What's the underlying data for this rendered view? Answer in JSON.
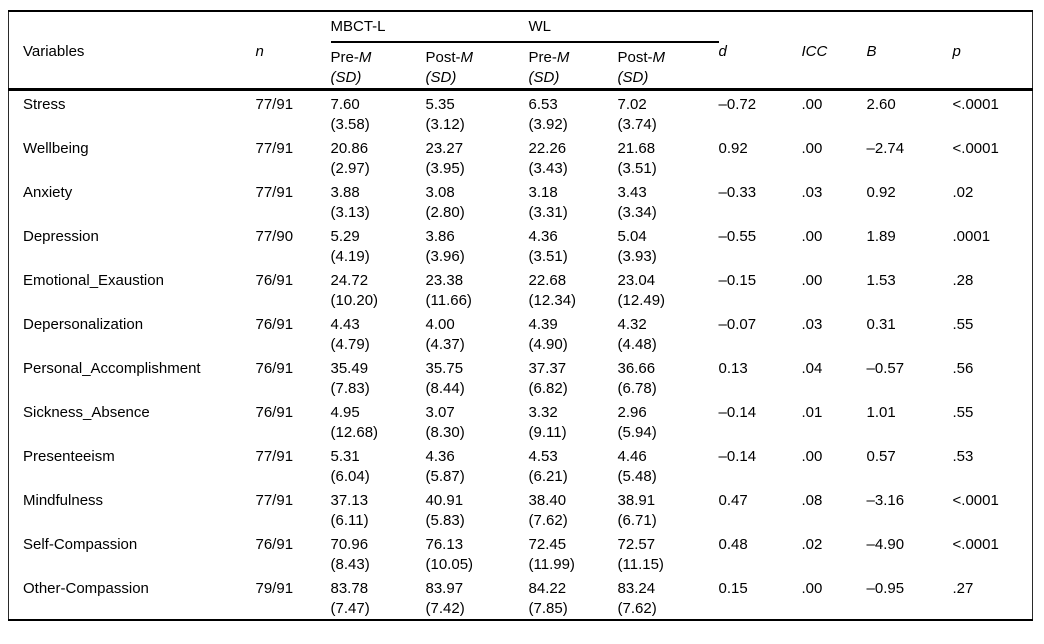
{
  "table": {
    "header": {
      "variables": "Variables",
      "n": "n",
      "groups": [
        {
          "label": "MBCT-L"
        },
        {
          "label": "WL"
        }
      ],
      "pre_prefix": "Pre-",
      "post_prefix": "Post-",
      "mean_symbol": "M",
      "sd_symbol": "(SD)",
      "d": "d",
      "icc": "ICC",
      "b": "B",
      "p": "p"
    },
    "rows": [
      {
        "variable": "Stress",
        "n": "77/91",
        "mbct_pre": "7.60\n(3.58)",
        "mbct_post": "5.35\n(3.12)",
        "wl_pre": "6.53\n(3.92)",
        "wl_post": "7.02\n(3.74)",
        "d": "–0.72",
        "icc": ".00",
        "b": "2.60",
        "p": "<.0001"
      },
      {
        "variable": "Wellbeing",
        "n": "77/91",
        "mbct_pre": "20.86\n(2.97)",
        "mbct_post": "23.27\n(3.95)",
        "wl_pre": "22.26\n(3.43)",
        "wl_post": "21.68\n(3.51)",
        "d": "0.92",
        "icc": ".00",
        "b": "–2.74",
        "p": "<.0001"
      },
      {
        "variable": "Anxiety",
        "n": "77/91",
        "mbct_pre": "3.88\n(3.13)",
        "mbct_post": "3.08\n(2.80)",
        "wl_pre": "3.18\n(3.31)",
        "wl_post": "3.43\n(3.34)",
        "d": "–0.33",
        "icc": ".03",
        "b": "0.92",
        "p": ".02"
      },
      {
        "variable": "Depression",
        "n": "77/90",
        "mbct_pre": "5.29\n(4.19)",
        "mbct_post": "3.86\n(3.96)",
        "wl_pre": "4.36\n(3.51)",
        "wl_post": "5.04\n(3.93)",
        "d": "–0.55",
        "icc": ".00",
        "b": "1.89",
        "p": ".0001"
      },
      {
        "variable": "Emotional_Exaustion",
        "n": "76/91",
        "mbct_pre": "24.72\n(10.20)",
        "mbct_post": "23.38\n(11.66)",
        "wl_pre": "22.68\n(12.34)",
        "wl_post": "23.04\n(12.49)",
        "d": "–0.15",
        "icc": ".00",
        "b": "1.53",
        "p": ".28"
      },
      {
        "variable": "Depersonalization",
        "n": "76/91",
        "mbct_pre": "4.43\n(4.79)",
        "mbct_post": "4.00\n(4.37)",
        "wl_pre": "4.39\n(4.90)",
        "wl_post": "4.32\n(4.48)",
        "d": "–0.07",
        "icc": ".03",
        "b": "0.31",
        "p": ".55"
      },
      {
        "variable": "Personal_Accomplishment",
        "n": "76/91",
        "mbct_pre": "35.49\n(7.83)",
        "mbct_post": "35.75\n(8.44)",
        "wl_pre": "37.37\n(6.82)",
        "wl_post": "36.66\n(6.78)",
        "d": "0.13",
        "icc": ".04",
        "b": "–0.57",
        "p": ".56"
      },
      {
        "variable": "Sickness_Absence",
        "n": "76/91",
        "mbct_pre": "4.95\n(12.68)",
        "mbct_post": "3.07\n(8.30)",
        "wl_pre": "3.32\n(9.11)",
        "wl_post": "2.96\n(5.94)",
        "d": "–0.14",
        "icc": ".01",
        "b": "1.01",
        "p": ".55"
      },
      {
        "variable": "Presenteeism",
        "n": "77/91",
        "mbct_pre": "5.31\n(6.04)",
        "mbct_post": "4.36\n(5.87)",
        "wl_pre": "4.53\n(6.21)",
        "wl_post": "4.46\n(5.48)",
        "d": "–0.14",
        "icc": ".00",
        "b": "0.57",
        "p": ".53"
      },
      {
        "variable": "Mindfulness",
        "n": "77/91",
        "mbct_pre": "37.13\n(6.11)",
        "mbct_post": "40.91\n(5.83)",
        "wl_pre": "38.40\n(7.62)",
        "wl_post": "38.91\n(6.71)",
        "d": "0.47",
        "icc": ".08",
        "b": "–3.16",
        "p": "<.0001"
      },
      {
        "variable": "Self-Compassion",
        "n": "76/91",
        "mbct_pre": "70.96\n(8.43)",
        "mbct_post": "76.13\n(10.05)",
        "wl_pre": "72.45\n(11.99)",
        "wl_post": "72.57\n(11.15)",
        "d": "0.48",
        "icc": ".02",
        "b": "–4.90",
        "p": "<.0001"
      },
      {
        "variable": "Other-Compassion",
        "n": "79/91",
        "mbct_pre": "83.78\n(7.47)",
        "mbct_post": "83.97\n(7.42)",
        "wl_pre": "84.22\n(7.85)",
        "wl_post": "83.24\n(7.62)",
        "d": "0.15",
        "icc": ".00",
        "b": "–0.95",
        "p": ".27"
      }
    ]
  }
}
